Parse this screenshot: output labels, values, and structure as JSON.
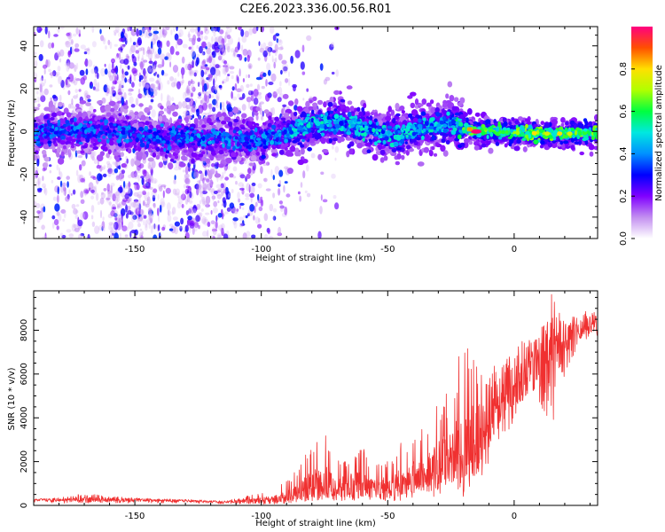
{
  "page_title": "C2E6.2023.336.00.56.R01",
  "chart_data": [
    {
      "type": "heatmap",
      "xlabel": "Height of straight line (km)",
      "ylabel": "Frequency (Hz)",
      "xlim": [
        -190,
        33
      ],
      "ylim": [
        -50,
        49
      ],
      "x_ticks": [
        -150,
        -100,
        -50,
        0
      ],
      "x_tick_labels": [
        "-150",
        "-100",
        "-50",
        "0"
      ],
      "y_ticks": [
        -40,
        -20,
        0,
        20,
        40
      ],
      "y_tick_labels": [
        "-40",
        "-20",
        "0",
        "20",
        "40"
      ],
      "grid": false,
      "colorbar": {
        "label": "Normalized spectral amplitude",
        "range": [
          0,
          1
        ],
        "ticks": [
          0,
          0.2,
          0.4,
          0.6,
          0.8
        ],
        "tick_labels": [
          "0.0",
          "0.2",
          "0.4",
          "0.6",
          "0.8"
        ],
        "colormap": "rainbow-white",
        "stops": [
          [
            0.0,
            "#ffffff"
          ],
          [
            0.1,
            "#c38ff0"
          ],
          [
            0.2,
            "#8000ff"
          ],
          [
            0.3,
            "#0000ff"
          ],
          [
            0.4,
            "#0090ff"
          ],
          [
            0.5,
            "#00e8e0"
          ],
          [
            0.6,
            "#00ff40"
          ],
          [
            0.7,
            "#b0ff00"
          ],
          [
            0.8,
            "#ffe000"
          ],
          [
            0.9,
            "#ff5000"
          ],
          [
            1.0,
            "#ff0080"
          ]
        ]
      },
      "ridge_centerline": {
        "heights_km": [
          -190,
          -160,
          -140,
          -120,
          -110,
          -100,
          -90,
          -80,
          -70,
          -60,
          -50,
          -40,
          -30,
          -25,
          -20,
          -15,
          -10,
          0,
          10,
          20,
          33
        ],
        "frequency_hz": [
          0,
          0,
          -3,
          -3,
          -4,
          -4,
          -1,
          3,
          4,
          2,
          -2,
          0,
          3,
          4,
          2,
          0,
          0,
          0,
          -1,
          -1,
          -1
        ]
      },
      "noise_region_km": [
        -190,
        -90
      ],
      "peak_amplitude_height_km": -15
    },
    {
      "type": "line",
      "xlabel": "Height of straight line (km)",
      "ylabel": "SNR (10 * v/v)",
      "xlim": [
        -190,
        33
      ],
      "ylim": [
        0,
        9800
      ],
      "x_ticks": [
        -150,
        -100,
        -50,
        0
      ],
      "x_tick_labels": [
        "-150",
        "-100",
        "-50",
        "0"
      ],
      "y_ticks": [
        0,
        2000,
        4000,
        6000,
        8000
      ],
      "y_tick_labels": [
        "0",
        "2000",
        "4000",
        "6000",
        "8000"
      ],
      "grid": false,
      "color": "#f03030",
      "series": [
        {
          "x": [
            -190,
            -180,
            -170,
            -160,
            -150,
            -140,
            -130,
            -120,
            -115,
            -110,
            -105,
            -100,
            -95,
            -90,
            -85,
            -80,
            -75,
            -70,
            -65,
            -60,
            -55,
            -50,
            -45,
            -40,
            -35,
            -30,
            -25,
            -20,
            -15,
            -10,
            -5,
            0,
            5,
            10,
            15,
            20,
            25,
            33
          ],
          "y": [
            250,
            250,
            260,
            270,
            250,
            230,
            200,
            170,
            160,
            180,
            200,
            220,
            260,
            380,
            600,
            900,
            1000,
            700,
            800,
            900,
            800,
            700,
            900,
            1300,
            1600,
            1900,
            2300,
            2500,
            2900,
            3800,
            4900,
            5500,
            5900,
            6400,
            7100,
            7600,
            8000,
            8400
          ],
          "envelope_max": [
            300,
            350,
            550,
            420,
            350,
            300,
            270,
            230,
            230,
            300,
            450,
            600,
            700,
            1200,
            1900,
            3000,
            3500,
            2000,
            2600,
            2700,
            1900,
            2300,
            2900,
            3000,
            3700,
            4800,
            5300,
            8000,
            7000,
            6200,
            6600,
            7000,
            7900,
            7800,
            9800,
            8500,
            8700,
            9100
          ],
          "envelope_min": [
            100,
            100,
            100,
            110,
            100,
            100,
            90,
            80,
            70,
            60,
            50,
            50,
            50,
            100,
            150,
            200,
            300,
            200,
            200,
            300,
            200,
            200,
            200,
            300,
            400,
            400,
            600,
            100,
            1000,
            1800,
            2800,
            3800,
            4200,
            4700,
            3300,
            6000,
            7200,
            7700
          ]
        }
      ]
    }
  ]
}
